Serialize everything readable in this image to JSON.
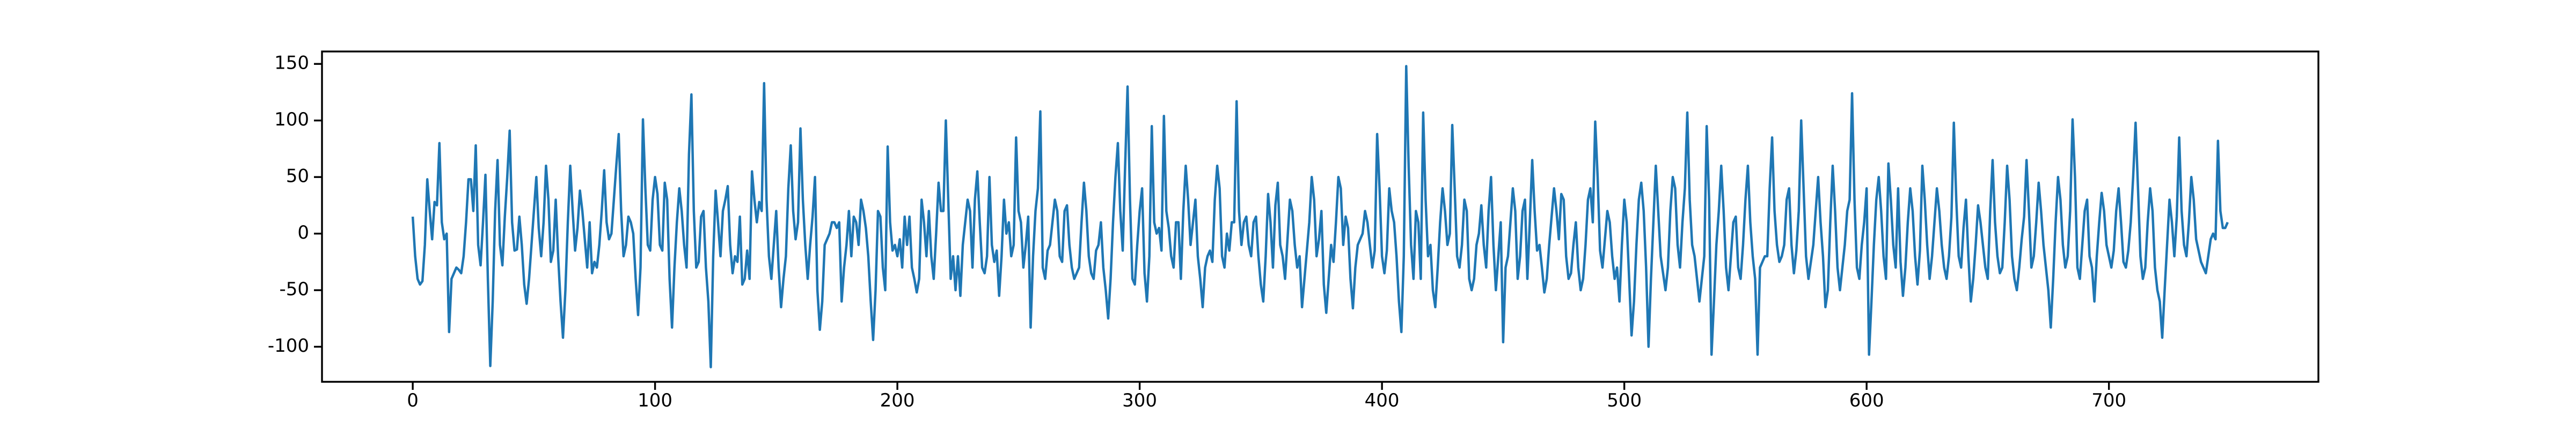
{
  "chart_data": {
    "type": "line",
    "color": "#1f77b4",
    "grid": false,
    "xlim": [
      -37.45,
      786.45
    ],
    "xticks": [
      0,
      100,
      200,
      300,
      400,
      500,
      600,
      700
    ],
    "ylim": [
      -131,
      161
    ],
    "yticks": [
      -100,
      -50,
      0,
      50,
      100,
      150
    ],
    "values": [
      15,
      -20,
      -40,
      -45,
      -42,
      -10,
      48,
      20,
      -5,
      28,
      25,
      80,
      10,
      -5,
      0,
      -87,
      -40,
      -35,
      -30,
      -32,
      -35,
      -20,
      10,
      48,
      48,
      20,
      78,
      -10,
      -28,
      10,
      52,
      -40,
      -117,
      -60,
      20,
      65,
      -10,
      -28,
      15,
      50,
      91,
      10,
      -15,
      -14,
      15,
      -10,
      -45,
      -62,
      -40,
      -10,
      20,
      50,
      5,
      -20,
      10,
      60,
      30,
      -25,
      -15,
      30,
      -20,
      -60,
      -92,
      -50,
      10,
      60,
      20,
      -15,
      5,
      38,
      20,
      -5,
      -30,
      10,
      -35,
      -25,
      -30,
      -10,
      20,
      56,
      10,
      -5,
      0,
      30,
      60,
      88,
      20,
      -20,
      -10,
      15,
      10,
      0,
      -40,
      -72,
      -30,
      101,
      40,
      -10,
      -15,
      30,
      50,
      35,
      -10,
      -15,
      45,
      30,
      -40,
      -83,
      -30,
      10,
      40,
      20,
      -10,
      -30,
      70,
      123,
      20,
      -30,
      -25,
      15,
      20,
      -30,
      -60,
      -118,
      -20,
      38,
      10,
      -20,
      20,
      30,
      42,
      -10,
      -35,
      -20,
      -25,
      15,
      -45,
      -40,
      -15,
      -40,
      55,
      30,
      10,
      28,
      20,
      133,
      30,
      -20,
      -40,
      -10,
      20,
      -30,
      -65,
      -40,
      -20,
      40,
      78,
      20,
      -5,
      10,
      93,
      30,
      -10,
      -40,
      -10,
      15,
      50,
      -50,
      -85,
      -60,
      -10,
      -5,
      0,
      10,
      10,
      5,
      10,
      -60,
      -30,
      -10,
      20,
      -20,
      15,
      10,
      -10,
      30,
      20,
      5,
      -20,
      -60,
      -94,
      -50,
      20,
      15,
      -30,
      -50,
      77,
      10,
      -15,
      -10,
      -20,
      -5,
      -30,
      15,
      -10,
      15,
      -30,
      -40,
      -52,
      -40,
      30,
      10,
      -20,
      20,
      -20,
      -40,
      0,
      45,
      20,
      20,
      100,
      30,
      -40,
      -20,
      -50,
      -20,
      -55,
      -10,
      10,
      30,
      20,
      -30,
      30,
      55,
      10,
      -30,
      -35,
      -20,
      50,
      -10,
      -25,
      -15,
      -55,
      -20,
      30,
      0,
      10,
      -20,
      -10,
      85,
      20,
      10,
      -30,
      -10,
      15,
      -83,
      -20,
      20,
      40,
      108,
      -30,
      -40,
      -15,
      -10,
      10,
      30,
      20,
      -20,
      -25,
      20,
      25,
      -10,
      -30,
      -40,
      -35,
      -30,
      10,
      45,
      20,
      -20,
      -35,
      -40,
      -15,
      -10,
      10,
      -30,
      -50,
      -75,
      -40,
      10,
      50,
      80,
      20,
      -15,
      60,
      130,
      30,
      -40,
      -45,
      -10,
      20,
      40,
      -35,
      -60,
      -20,
      95,
      10,
      0,
      5,
      -15,
      104,
      20,
      5,
      -20,
      -30,
      10,
      10,
      -40,
      20,
      60,
      30,
      -10,
      10,
      30,
      -20,
      -40,
      -65,
      -30,
      -20,
      -15,
      -25,
      30,
      60,
      40,
      -20,
      -30,
      0,
      -15,
      10,
      10,
      117,
      20,
      -10,
      10,
      15,
      -10,
      -20,
      10,
      15,
      -20,
      -45,
      -60,
      -20,
      35,
      10,
      -30,
      25,
      45,
      -10,
      -20,
      -40,
      -5,
      30,
      20,
      -10,
      -30,
      -20,
      -65,
      -40,
      -15,
      10,
      50,
      30,
      -20,
      -5,
      20,
      -45,
      -70,
      -40,
      -10,
      -25,
      10,
      50,
      40,
      -10,
      15,
      5,
      -40,
      -66,
      -30,
      -10,
      -5,
      0,
      20,
      10,
      -10,
      -30,
      -15,
      88,
      40,
      -20,
      -35,
      -15,
      40,
      20,
      10,
      -20,
      -60,
      -87,
      -20,
      148,
      60,
      -10,
      -40,
      20,
      10,
      -40,
      107,
      30,
      -20,
      -10,
      -50,
      -65,
      -30,
      10,
      40,
      20,
      -10,
      0,
      96,
      40,
      -20,
      -30,
      -10,
      30,
      20,
      -40,
      -50,
      -40,
      -10,
      0,
      25,
      -10,
      -30,
      20,
      50,
      -10,
      -50,
      -20,
      10,
      -96,
      -30,
      -20,
      10,
      40,
      20,
      -40,
      -20,
      20,
      30,
      -40,
      10,
      65,
      20,
      -15,
      -10,
      -30,
      -52,
      -40,
      -10,
      15,
      40,
      20,
      -5,
      35,
      30,
      -20,
      -40,
      -35,
      -10,
      10,
      -30,
      -50,
      -40,
      -10,
      30,
      40,
      10,
      99,
      50,
      -15,
      -30,
      -5,
      20,
      10,
      -20,
      -40,
      -30,
      -60,
      -10,
      30,
      10,
      -40,
      -90,
      -60,
      -10,
      30,
      45,
      20,
      -30,
      -100,
      -40,
      10,
      60,
      20,
      -20,
      -35,
      -50,
      -30,
      20,
      50,
      40,
      -10,
      -30,
      10,
      40,
      107,
      30,
      -10,
      -20,
      -40,
      -60,
      -40,
      -20,
      95,
      30,
      -107,
      -60,
      -10,
      20,
      60,
      20,
      -30,
      -50,
      -20,
      10,
      15,
      -30,
      -40,
      -10,
      30,
      60,
      10,
      -20,
      -40,
      -107,
      -30,
      -25,
      -20,
      -20,
      40,
      85,
      20,
      -10,
      -25,
      -20,
      -10,
      30,
      40,
      -10,
      -35,
      -15,
      20,
      100,
      40,
      -20,
      -40,
      -25,
      -10,
      20,
      50,
      10,
      -20,
      -65,
      -50,
      10,
      60,
      20,
      -30,
      -50,
      -30,
      -10,
      20,
      30,
      124,
      30,
      -30,
      -40,
      -10,
      10,
      40,
      -107,
      -60,
      -10,
      30,
      50,
      20,
      -20,
      -40,
      62,
      30,
      -10,
      -30,
      40,
      -25,
      -55,
      -30,
      10,
      40,
      20,
      -20,
      -45,
      -15,
      60,
      30,
      -10,
      -40,
      -20,
      10,
      40,
      20,
      -10,
      -30,
      -40,
      -20,
      15,
      98,
      30,
      -20,
      -30,
      5,
      30,
      -20,
      -60,
      -40,
      -10,
      25,
      10,
      -10,
      -30,
      -40,
      20,
      65,
      10,
      -20,
      -35,
      -30,
      10,
      60,
      30,
      -20,
      -40,
      -50,
      -30,
      -5,
      15,
      65,
      20,
      -30,
      -20,
      10,
      45,
      20,
      -10,
      -30,
      -50,
      -83,
      -40,
      10,
      50,
      30,
      -10,
      -30,
      -20,
      20,
      101,
      50,
      -30,
      -40,
      -10,
      20,
      30,
      -20,
      -30,
      -60,
      -20,
      10,
      36,
      20,
      -10,
      -20,
      -30,
      -15,
      20,
      40,
      10,
      -25,
      -30,
      -15,
      10,
      50,
      98,
      40,
      -20,
      -40,
      -30,
      10,
      40,
      20,
      -30,
      -50,
      -60,
      -92,
      -50,
      -10,
      30,
      10,
      -20,
      15,
      85,
      20,
      -10,
      -20,
      10,
      50,
      30,
      -5,
      -15,
      -25,
      -30,
      -35,
      -20,
      -5,
      0,
      -5,
      82,
      20,
      5,
      5,
      10
    ]
  }
}
